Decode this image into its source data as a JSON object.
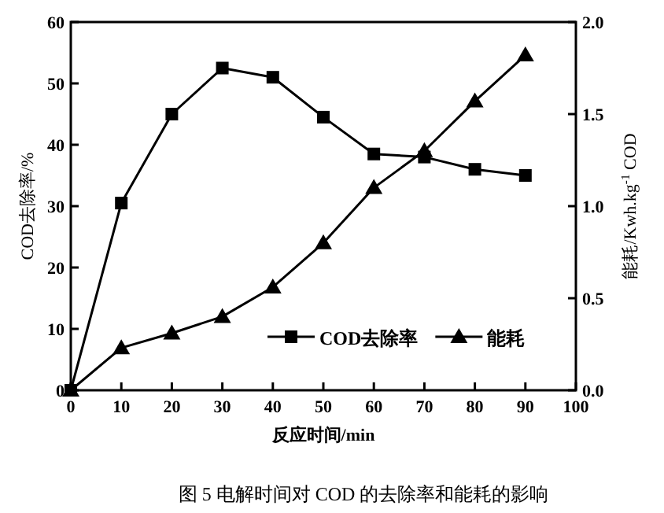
{
  "chart_data": {
    "type": "line",
    "xlabel": "反应时间/min",
    "ylabel": "COD去除率/%",
    "y2label": "能耗/Kwh.kg$^{-1}$ COD",
    "annotations": [
      "图 5  电解时间对 COD 的去除率和能耗的影响"
    ],
    "x": [
      0,
      10,
      20,
      30,
      40,
      50,
      60,
      70,
      80,
      90
    ],
    "series": [
      {
        "name": "COD去除率",
        "color": "#000000",
        "marker": "square",
        "values": [
          0,
          30.5,
          45,
          52.5,
          51,
          44.5,
          38.5,
          38,
          36,
          35
        ]
      },
      {
        "name": "能耗",
        "color": "#000000",
        "marker": "triangle",
        "axis": "y2",
        "values": [
          0,
          0.23,
          0.31,
          0.4,
          0.56,
          0.8,
          1.1,
          1.3,
          1.57,
          1.82
        ]
      }
    ],
    "xlim": [
      0,
      100
    ],
    "xticks": [
      0,
      10,
      20,
      30,
      40,
      50,
      60,
      70,
      80,
      90,
      100
    ],
    "ylim": [
      0,
      60
    ],
    "yticks": [
      0,
      10,
      20,
      30,
      40,
      50,
      60
    ],
    "y2lim": [
      0,
      2.0
    ],
    "y2ticks": [
      {
        "value": 0,
        "label": "0.0"
      },
      {
        "value": 0.5,
        "label": "0.5"
      },
      {
        "value": 1,
        "label": "1.0"
      },
      {
        "value": 1.5,
        "label": "1.5"
      },
      {
        "value": 2,
        "label": "2.0"
      }
    ],
    "legend": "bottom right",
    "grid": false,
    "line_style": "solid"
  }
}
